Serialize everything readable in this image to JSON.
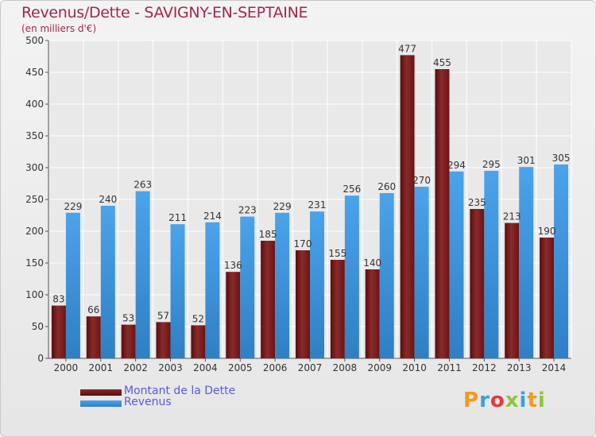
{
  "title": "Revenus/Dette - SAVIGNY-EN-SEPTAINE",
  "subtitle": "(en milliers d'€)",
  "logo": {
    "text": "Proxiti",
    "colors": [
      "#f29a1e",
      "#3aa0e0",
      "#e03a3a",
      "#8cc63f",
      "#3aa0e0",
      "#f29a1e",
      "#8cc63f"
    ]
  },
  "legend": [
    {
      "label": "Montant de la Dette",
      "color": "#6e1414"
    },
    {
      "label": "Revenus",
      "color": "#3d8fd8"
    }
  ],
  "chart_data": {
    "type": "bar",
    "categories": [
      "2000",
      "2001",
      "2002",
      "2003",
      "2004",
      "2005",
      "2006",
      "2007",
      "2008",
      "2009",
      "2010",
      "2011",
      "2012",
      "2013",
      "2014"
    ],
    "series": [
      {
        "name": "Montant de la Dette",
        "color": "#6e1414",
        "values": [
          83,
          66,
          53,
          57,
          52,
          136,
          185,
          170,
          155,
          140,
          477,
          455,
          235,
          213,
          190
        ]
      },
      {
        "name": "Revenus",
        "color": "#3d8fd8",
        "values": [
          229,
          240,
          263,
          211,
          214,
          223,
          229,
          231,
          256,
          260,
          270,
          294,
          295,
          301,
          305
        ]
      }
    ],
    "ylim": [
      0,
      500
    ],
    "yticks": [
      0,
      50,
      100,
      150,
      200,
      250,
      300,
      350,
      400,
      450,
      500
    ],
    "grid": true,
    "legend_position": "bottom-left"
  }
}
